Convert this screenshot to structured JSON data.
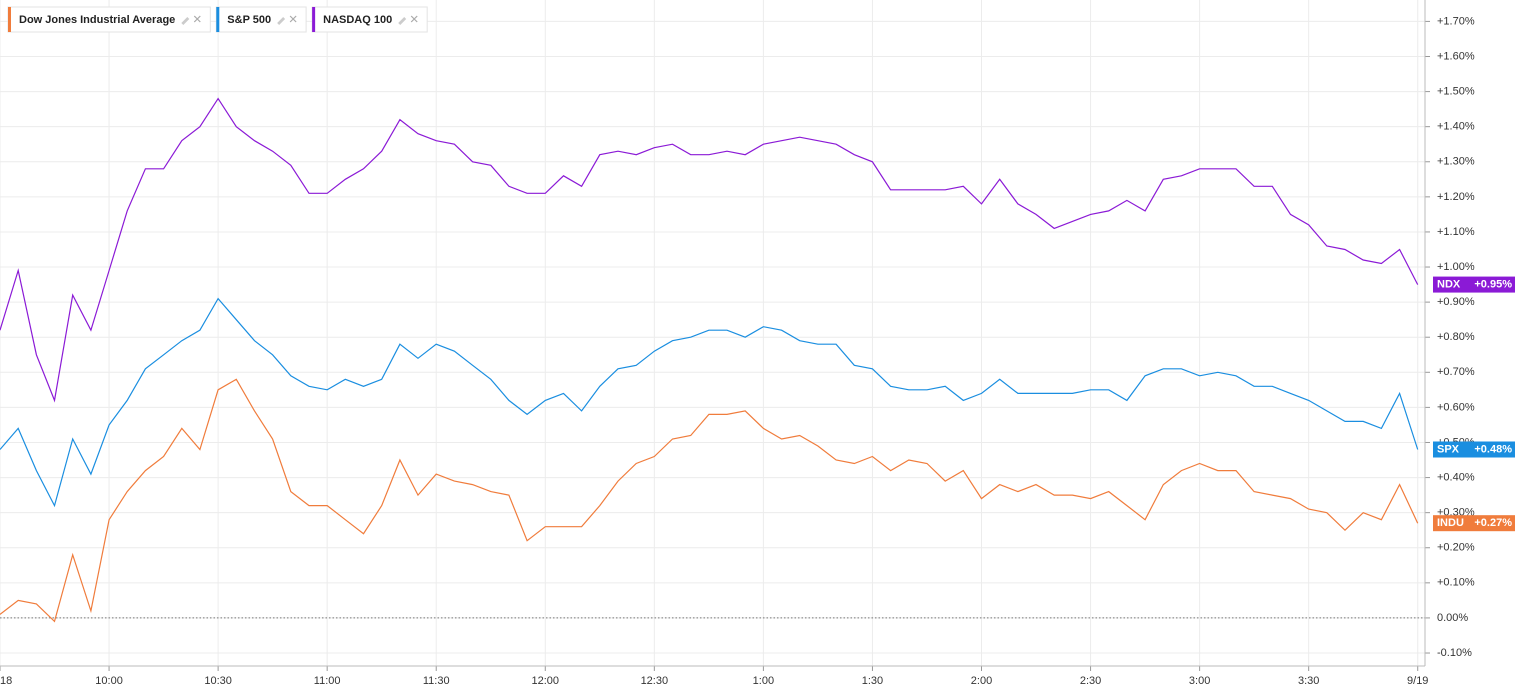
{
  "chart_data": {
    "type": "line",
    "x": [
      0,
      5,
      10,
      15,
      20,
      25,
      30,
      35,
      40,
      45,
      50,
      55,
      60,
      65,
      70,
      75,
      80,
      85,
      90,
      95,
      100,
      105,
      110,
      115,
      120,
      125,
      130,
      135,
      140,
      145,
      150,
      155,
      160,
      165,
      170,
      175,
      180,
      185,
      190,
      195,
      200,
      205,
      210,
      215,
      220,
      225,
      230,
      235,
      240,
      245,
      250,
      255,
      260,
      265,
      270,
      275,
      280,
      285,
      290,
      295,
      300,
      305,
      310,
      315,
      320,
      325,
      330,
      335,
      340,
      345,
      350,
      355,
      360,
      365,
      370,
      375,
      380,
      385,
      390
    ],
    "xlim": [
      0,
      392
    ],
    "xticks": [
      {
        "value": 0,
        "label": "18"
      },
      {
        "value": 30,
        "label": "10:00"
      },
      {
        "value": 60,
        "label": "10:30"
      },
      {
        "value": 90,
        "label": "11:00"
      },
      {
        "value": 120,
        "label": "11:30"
      },
      {
        "value": 150,
        "label": "12:00"
      },
      {
        "value": 180,
        "label": "12:30"
      },
      {
        "value": 210,
        "label": "1:00"
      },
      {
        "value": 240,
        "label": "1:30"
      },
      {
        "value": 270,
        "label": "2:00"
      },
      {
        "value": 300,
        "label": "2:30"
      },
      {
        "value": 330,
        "label": "3:00"
      },
      {
        "value": 360,
        "label": "3:30"
      },
      {
        "value": 390,
        "label": "9/19"
      }
    ],
    "ylim": [
      -0.137,
      1.761
    ],
    "yticks": [
      {
        "value": -0.1,
        "label": "-0.10%"
      },
      {
        "value": 0,
        "label": "0.00%"
      },
      {
        "value": 0.1,
        "label": "+0.10%"
      },
      {
        "value": 0.2,
        "label": "+0.20%"
      },
      {
        "value": 0.3,
        "label": "+0.30%"
      },
      {
        "value": 0.4,
        "label": "+0.40%"
      },
      {
        "value": 0.5,
        "label": "+0.50%"
      },
      {
        "value": 0.6,
        "label": "+0.60%"
      },
      {
        "value": 0.7,
        "label": "+0.70%"
      },
      {
        "value": 0.8,
        "label": "+0.80%"
      },
      {
        "value": 0.9,
        "label": "+0.90%"
      },
      {
        "value": 1.0,
        "label": "+1.00%"
      },
      {
        "value": 1.1,
        "label": "+1.10%"
      },
      {
        "value": 1.2,
        "label": "+1.20%"
      },
      {
        "value": 1.3,
        "label": "+1.30%"
      },
      {
        "value": 1.4,
        "label": "+1.40%"
      },
      {
        "value": 1.5,
        "label": "+1.50%"
      },
      {
        "value": 1.6,
        "label": "+1.60%"
      },
      {
        "value": 1.7,
        "label": "+1.70%"
      }
    ],
    "grid": true,
    "zero_line": true,
    "series": [
      {
        "name": "Dow Jones Industrial Average",
        "symbol": "INDU",
        "color": "#f07c3c",
        "last_value": 0.27,
        "last_label": "+0.27%",
        "values": [
          0.01,
          0.05,
          0.04,
          -0.01,
          0.18,
          0.02,
          0.28,
          0.36,
          0.42,
          0.46,
          0.54,
          0.48,
          0.65,
          0.68,
          0.59,
          0.51,
          0.36,
          0.32,
          0.32,
          0.28,
          0.24,
          0.32,
          0.45,
          0.35,
          0.41,
          0.39,
          0.38,
          0.36,
          0.35,
          0.22,
          0.26,
          0.26,
          0.26,
          0.32,
          0.39,
          0.44,
          0.46,
          0.51,
          0.52,
          0.58,
          0.58,
          0.59,
          0.54,
          0.51,
          0.52,
          0.49,
          0.45,
          0.44,
          0.46,
          0.42,
          0.45,
          0.44,
          0.39,
          0.42,
          0.34,
          0.38,
          0.36,
          0.38,
          0.35,
          0.35,
          0.34,
          0.36,
          0.32,
          0.28,
          0.38,
          0.42,
          0.44,
          0.42,
          0.42,
          0.36,
          0.35,
          0.34,
          0.31,
          0.3,
          0.25,
          0.3,
          0.28,
          0.38,
          0.27
        ]
      },
      {
        "name": "S&P 500",
        "symbol": "SPX",
        "color": "#1a8ee0",
        "last_value": 0.48,
        "last_label": "+0.48%",
        "values": [
          0.48,
          0.54,
          0.42,
          0.32,
          0.51,
          0.41,
          0.55,
          0.62,
          0.71,
          0.75,
          0.79,
          0.82,
          0.91,
          0.85,
          0.79,
          0.75,
          0.69,
          0.66,
          0.65,
          0.68,
          0.66,
          0.68,
          0.78,
          0.74,
          0.78,
          0.76,
          0.72,
          0.68,
          0.62,
          0.58,
          0.62,
          0.64,
          0.59,
          0.66,
          0.71,
          0.72,
          0.76,
          0.79,
          0.8,
          0.82,
          0.82,
          0.8,
          0.83,
          0.82,
          0.79,
          0.78,
          0.78,
          0.72,
          0.71,
          0.66,
          0.65,
          0.65,
          0.66,
          0.62,
          0.64,
          0.68,
          0.64,
          0.64,
          0.64,
          0.64,
          0.65,
          0.65,
          0.62,
          0.69,
          0.71,
          0.71,
          0.69,
          0.7,
          0.69,
          0.66,
          0.66,
          0.64,
          0.62,
          0.59,
          0.56,
          0.56,
          0.54,
          0.64,
          0.48
        ]
      },
      {
        "name": "NASDAQ 100",
        "symbol": "NDX",
        "color": "#8b1ad6",
        "last_value": 0.95,
        "last_label": "+0.95%",
        "values": [
          0.82,
          0.99,
          0.75,
          0.62,
          0.92,
          0.82,
          0.99,
          1.16,
          1.28,
          1.28,
          1.36,
          1.4,
          1.48,
          1.4,
          1.36,
          1.33,
          1.29,
          1.21,
          1.21,
          1.25,
          1.28,
          1.33,
          1.42,
          1.38,
          1.36,
          1.35,
          1.3,
          1.29,
          1.23,
          1.21,
          1.21,
          1.26,
          1.23,
          1.32,
          1.33,
          1.32,
          1.34,
          1.35,
          1.32,
          1.32,
          1.33,
          1.32,
          1.35,
          1.36,
          1.37,
          1.36,
          1.35,
          1.32,
          1.3,
          1.22,
          1.22,
          1.22,
          1.22,
          1.23,
          1.18,
          1.25,
          1.18,
          1.15,
          1.11,
          1.13,
          1.15,
          1.16,
          1.19,
          1.16,
          1.25,
          1.26,
          1.28,
          1.28,
          1.28,
          1.23,
          1.23,
          1.15,
          1.12,
          1.06,
          1.05,
          1.02,
          1.01,
          1.05,
          0.95
        ]
      }
    ]
  }
}
